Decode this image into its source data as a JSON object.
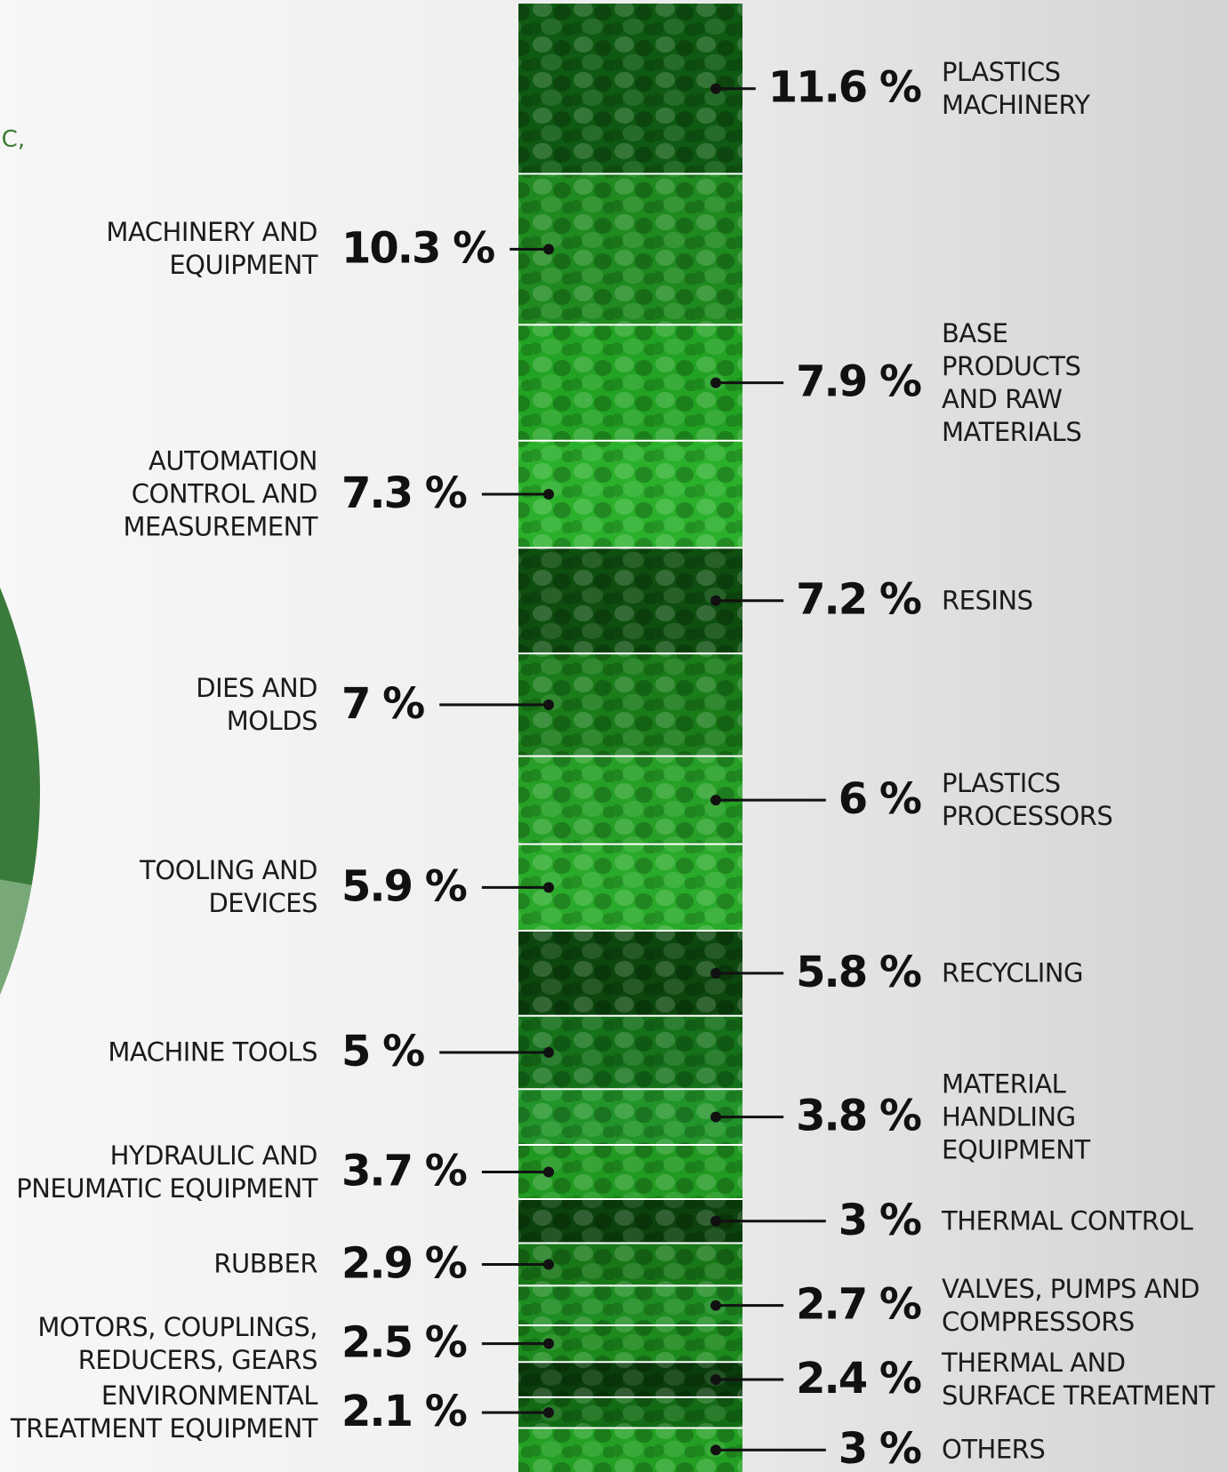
{
  "chart_data": {
    "type": "stacked-column",
    "fragment_text": "IC,",
    "categories": [
      "PLASTICS\nMACHINERY",
      "MACHINERY AND\nEQUIPMENT",
      "BASE\nPRODUCTS\nAND RAW\nMATERIALS",
      "AUTOMATION\nCONTROL AND\nMEASUREMENT",
      "RESINS",
      "DIES AND\nMOLDS",
      "PLASTICS\nPROCESSORS",
      "TOOLING AND\nDEVICES",
      "RECYCLING",
      "MACHINE TOOLS",
      "MATERIAL\nHANDLING\nEQUIPMENT",
      "HYDRAULIC AND\nPNEUMATIC EQUIPMENT",
      "THERMAL CONTROL",
      "RUBBER",
      "VALVES, PUMPS AND\nCOMPRESSORS",
      "MOTORS, COUPLINGS,\nREDUCERS, GEARS",
      "THERMAL AND\nSURFACE TREATMENT",
      "ENVIRONMENTAL\nTREATMENT EQUIPMENT",
      "OTHERS"
    ],
    "values": [
      11.6,
      10.3,
      7.9,
      7.3,
      7.2,
      7,
      6,
      5.9,
      5.8,
      5,
      3.8,
      3.7,
      3,
      2.9,
      2.7,
      2.5,
      2.4,
      2.1,
      3
    ],
    "value_labels": [
      "11.6 %",
      "10.3 %",
      "7.9 %",
      "7.3 %",
      "7.2 %",
      "7 %",
      "6 %",
      "5.9 %",
      "5.8 %",
      "5 %",
      "3.8 %",
      "3.7 %",
      "3 %",
      "2.9 %",
      "2.7 %",
      "2.5 %",
      "2.4 %",
      "2.1 %",
      "3 %"
    ],
    "label_sides": [
      "right",
      "left",
      "right",
      "left",
      "right",
      "left",
      "right",
      "left",
      "right",
      "left",
      "right",
      "left",
      "right",
      "left",
      "right",
      "left",
      "right",
      "left",
      "right"
    ],
    "colors": [
      "#0f5a12",
      "#1f8a1f",
      "#23a323",
      "#2bb02b",
      "#0e4f10",
      "#1a7d1a",
      "#26a026",
      "#2aaa2a",
      "#0c470e",
      "#15721a",
      "#22952a",
      "#219a21",
      "#0b420d",
      "#187818",
      "#1e8d22",
      "#1c8a1c",
      "#0a3d0c",
      "#136c15",
      "#23a023"
    ]
  }
}
